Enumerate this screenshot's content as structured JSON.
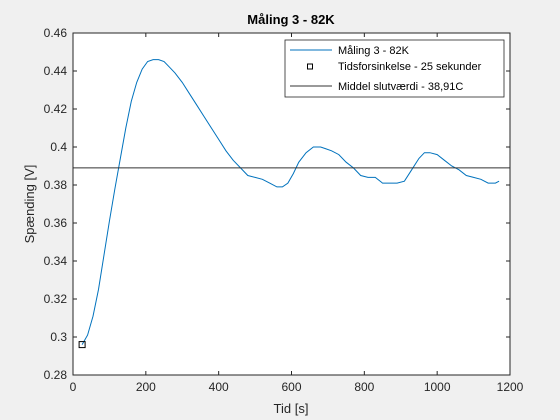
{
  "chart_data": {
    "type": "line",
    "title": "Måling 3 - 82K",
    "xlabel": "Tid [s]",
    "ylabel": "Spænding [V]",
    "xlim": [
      0,
      1200
    ],
    "ylim": [
      0.28,
      0.46
    ],
    "xticks": [
      0,
      200,
      400,
      600,
      800,
      1000,
      1200
    ],
    "yticks": [
      0.28,
      0.3,
      0.32,
      0.34,
      0.36,
      0.38,
      0.4,
      0.42,
      0.44,
      0.46
    ],
    "xtick_labels": [
      "0",
      "200",
      "400",
      "600",
      "800",
      "1000",
      "1200"
    ],
    "ytick_labels": [
      "0.28",
      "0.3",
      "0.32",
      "0.34",
      "0.36",
      "0.38",
      "0.4",
      "0.42",
      "0.44",
      "0.46"
    ],
    "grid": false,
    "legend_position": "top-right",
    "series": [
      {
        "name": "Måling 3 - 82K",
        "kind": "line",
        "color": "#0072bd",
        "x": [
          25,
          40,
          55,
          70,
          85,
          100,
          115,
          130,
          145,
          160,
          175,
          190,
          205,
          220,
          235,
          250,
          265,
          280,
          300,
          320,
          340,
          360,
          380,
          400,
          420,
          440,
          460,
          480,
          500,
          520,
          540,
          560,
          575,
          590,
          605,
          620,
          640,
          660,
          680,
          695,
          710,
          730,
          750,
          770,
          790,
          810,
          830,
          850,
          870,
          890,
          910,
          930,
          950,
          965,
          980,
          1000,
          1020,
          1040,
          1060,
          1080,
          1100,
          1120,
          1140,
          1160,
          1170
        ],
        "y": [
          0.296,
          0.301,
          0.311,
          0.325,
          0.343,
          0.361,
          0.378,
          0.394,
          0.41,
          0.424,
          0.434,
          0.441,
          0.445,
          0.446,
          0.446,
          0.445,
          0.442,
          0.439,
          0.434,
          0.428,
          0.422,
          0.416,
          0.41,
          0.404,
          0.398,
          0.393,
          0.389,
          0.385,
          0.384,
          0.383,
          0.381,
          0.379,
          0.379,
          0.381,
          0.386,
          0.392,
          0.397,
          0.4,
          0.4,
          0.399,
          0.398,
          0.396,
          0.392,
          0.389,
          0.385,
          0.384,
          0.384,
          0.381,
          0.381,
          0.381,
          0.382,
          0.388,
          0.394,
          0.397,
          0.397,
          0.396,
          0.393,
          0.39,
          0.388,
          0.385,
          0.384,
          0.383,
          0.381,
          0.381,
          0.382
        ]
      },
      {
        "name": "Tidsforsinkelse - 25 sekunder",
        "kind": "marker",
        "marker": "square",
        "color": "#000000",
        "x": [
          25
        ],
        "y": [
          0.296
        ]
      },
      {
        "name": "Middel slutværdi - 38,91C",
        "kind": "hline",
        "color": "#333333",
        "x": [
          0,
          1200
        ],
        "y": [
          0.389,
          0.389
        ]
      }
    ]
  }
}
